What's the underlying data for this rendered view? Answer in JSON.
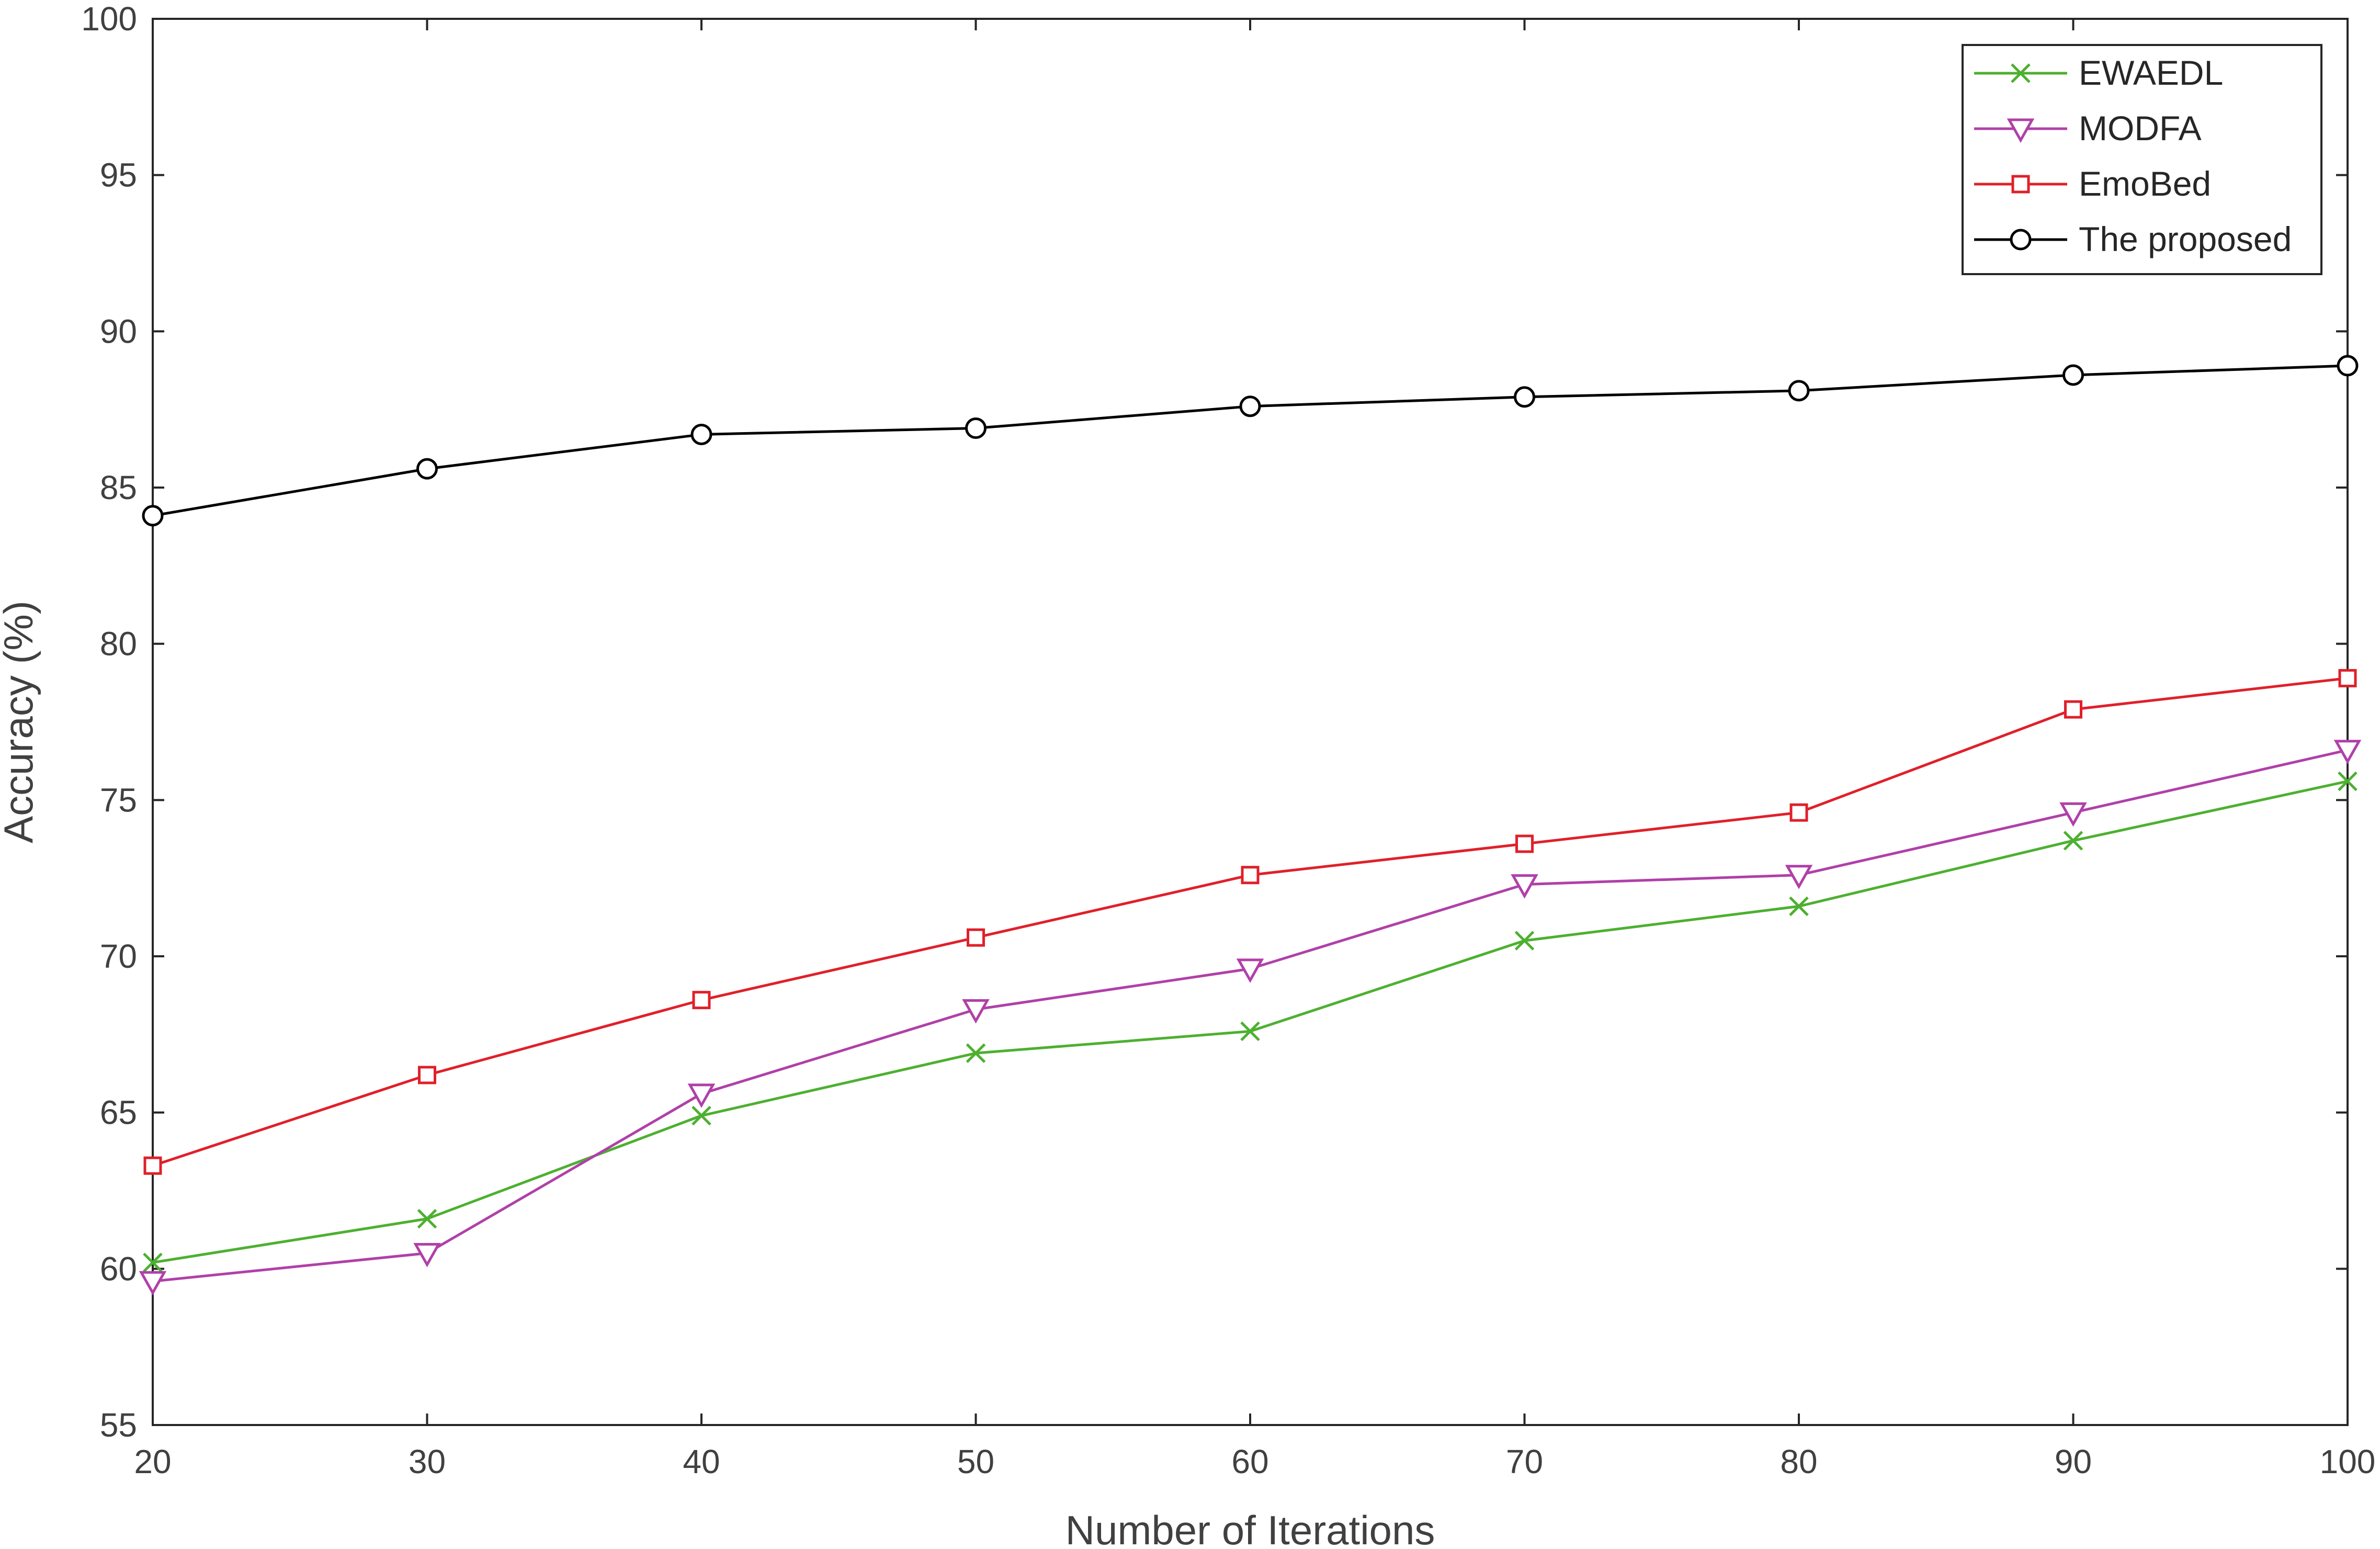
{
  "chart_data": {
    "type": "line",
    "title": "",
    "xlabel": "Number of Iterations",
    "ylabel": "Accuracy (%)",
    "x": [
      20,
      30,
      40,
      50,
      60,
      70,
      80,
      90,
      100
    ],
    "xlim": [
      20,
      100
    ],
    "ylim": [
      55,
      100
    ],
    "xticks": [
      20,
      30,
      40,
      50,
      60,
      70,
      80,
      90,
      100
    ],
    "yticks": [
      55,
      60,
      65,
      70,
      75,
      80,
      85,
      90,
      95,
      100
    ],
    "grid": false,
    "legend_position": "top-right",
    "series": [
      {
        "name": "EWAEDL",
        "color": "#4DB030",
        "marker": "x",
        "values": [
          60.2,
          61.6,
          64.9,
          66.9,
          67.6,
          70.5,
          71.6,
          73.7,
          75.6
        ]
      },
      {
        "name": "MODFA",
        "color": "#B040A8",
        "marker": "triangle-down",
        "values": [
          59.6,
          60.5,
          65.6,
          68.3,
          69.6,
          72.3,
          72.6,
          74.6,
          76.6
        ]
      },
      {
        "name": "EmoBed",
        "color": "#E0202A",
        "marker": "square",
        "values": [
          63.3,
          66.2,
          68.6,
          70.6,
          72.6,
          73.6,
          74.6,
          77.9,
          78.9
        ]
      },
      {
        "name": "The proposed",
        "color": "#000000",
        "marker": "circle",
        "values": [
          84.1,
          85.6,
          86.7,
          86.9,
          87.6,
          87.9,
          88.1,
          88.6,
          88.9
        ]
      }
    ]
  }
}
